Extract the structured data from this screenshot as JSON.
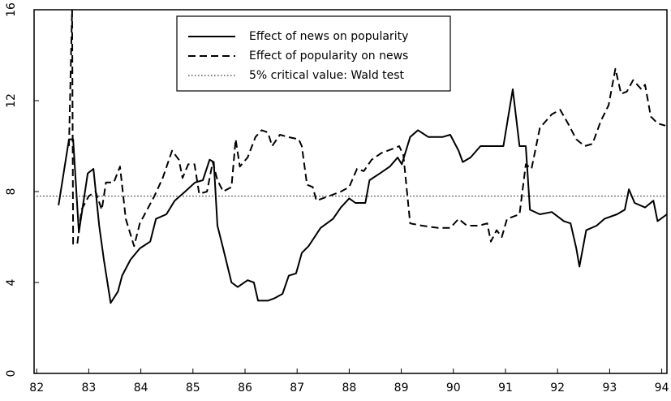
{
  "chart_data": {
    "type": "line",
    "xlim": [
      81.95,
      94.1
    ],
    "xticks": [
      82,
      83,
      84,
      85,
      86,
      87,
      88,
      89,
      90,
      91,
      92,
      93,
      94
    ],
    "ylim": [
      0,
      16
    ],
    "yticks": [
      0,
      4,
      8,
      12,
      16
    ],
    "legend": "upper center",
    "series": [
      {
        "name": "Effect of news on popularity",
        "color": "#000000",
        "style": "solid",
        "x": [
          82.42,
          82.62,
          82.7,
          82.81,
          82.98,
          83.09,
          83.2,
          83.29,
          83.42,
          83.56,
          83.64,
          83.8,
          83.98,
          84.18,
          84.29,
          84.49,
          84.65,
          84.85,
          85.04,
          85.19,
          85.32,
          85.4,
          85.47,
          85.58,
          85.74,
          85.86,
          86.05,
          86.17,
          86.25,
          86.44,
          86.56,
          86.72,
          86.84,
          86.98,
          87.09,
          87.22,
          87.45,
          87.69,
          87.84,
          88.0,
          88.12,
          88.31,
          88.39,
          88.59,
          88.78,
          88.93,
          89.01,
          89.17,
          89.32,
          89.52,
          89.79,
          89.94,
          90.1,
          90.18,
          90.33,
          90.52,
          90.96,
          91.14,
          91.27,
          91.39,
          91.47,
          91.66,
          91.89,
          92.12,
          92.25,
          92.36,
          92.42,
          92.55,
          92.75,
          92.9,
          93.14,
          93.29,
          93.37,
          93.48,
          93.68,
          93.84,
          93.92,
          94.1
        ],
        "values": [
          7.4,
          10.3,
          10.3,
          6.2,
          8.8,
          9.0,
          6.5,
          5.0,
          3.1,
          3.6,
          4.3,
          5.0,
          5.5,
          5.8,
          6.8,
          7.0,
          7.6,
          8.0,
          8.4,
          8.5,
          9.4,
          9.3,
          6.5,
          5.5,
          4.0,
          3.8,
          4.1,
          4.0,
          3.2,
          3.2,
          3.3,
          3.5,
          4.3,
          4.4,
          5.3,
          5.6,
          6.4,
          6.8,
          7.3,
          7.7,
          7.5,
          7.5,
          8.5,
          8.8,
          9.1,
          9.5,
          9.2,
          10.4,
          10.7,
          10.4,
          10.4,
          10.5,
          9.8,
          9.3,
          9.5,
          10.0,
          10.0,
          12.5,
          10.0,
          10.0,
          7.2,
          7.0,
          7.1,
          6.7,
          6.6,
          5.5,
          4.7,
          6.3,
          6.5,
          6.8,
          7.0,
          7.2,
          8.1,
          7.5,
          7.3,
          7.6,
          6.7,
          7.0
        ]
      },
      {
        "name": "Effect of popularity on news",
        "color": "#000000",
        "style": "dashed",
        "x": [
          82.62,
          82.68,
          82.7,
          82.78,
          82.86,
          83.0,
          83.13,
          83.25,
          83.33,
          83.48,
          83.6,
          83.71,
          83.87,
          83.98,
          84.26,
          84.42,
          84.6,
          84.73,
          84.8,
          84.91,
          85.03,
          85.12,
          85.27,
          85.38,
          85.47,
          85.58,
          85.74,
          85.82,
          85.9,
          86.05,
          86.2,
          86.32,
          86.44,
          86.52,
          86.67,
          86.83,
          87.03,
          87.09,
          87.19,
          87.3,
          87.37,
          87.61,
          87.84,
          88.0,
          88.15,
          88.28,
          88.43,
          88.62,
          88.86,
          88.96,
          89.04,
          89.17,
          89.4,
          89.71,
          89.94,
          90.1,
          90.26,
          90.49,
          90.65,
          90.72,
          90.83,
          90.93,
          91.03,
          91.27,
          91.39,
          91.5,
          91.66,
          91.89,
          92.05,
          92.2,
          92.36,
          92.52,
          92.67,
          92.83,
          92.98,
          93.11,
          93.22,
          93.33,
          93.45,
          93.61,
          93.68,
          93.79,
          93.92,
          94.07
        ],
        "values": [
          10.0,
          16.0,
          5.7,
          5.7,
          7.2,
          7.8,
          8.0,
          7.2,
          8.4,
          8.4,
          9.1,
          6.8,
          5.6,
          6.6,
          7.8,
          8.6,
          9.8,
          9.4,
          8.6,
          9.2,
          9.2,
          7.9,
          8.0,
          9.3,
          8.5,
          8.0,
          8.2,
          10.3,
          9.1,
          9.5,
          10.4,
          10.7,
          10.6,
          10.0,
          10.5,
          10.4,
          10.3,
          10.0,
          8.3,
          8.2,
          7.6,
          7.8,
          8.0,
          8.2,
          9.0,
          8.9,
          9.4,
          9.7,
          9.9,
          10.0,
          9.6,
          6.6,
          6.5,
          6.4,
          6.4,
          6.8,
          6.5,
          6.5,
          6.6,
          5.8,
          6.3,
          6.0,
          6.8,
          7.0,
          9.2,
          9.0,
          10.8,
          11.4,
          11.6,
          11.0,
          10.3,
          10.0,
          10.1,
          11.1,
          11.8,
          13.4,
          12.3,
          12.4,
          12.9,
          12.5,
          12.7,
          11.3,
          11.0,
          10.9
        ]
      },
      {
        "name": "5% critical value: Wald test",
        "color": "#000000",
        "style": "dotted",
        "x": [
          82,
          94.1
        ],
        "values": [
          7.8,
          7.8
        ]
      }
    ]
  }
}
